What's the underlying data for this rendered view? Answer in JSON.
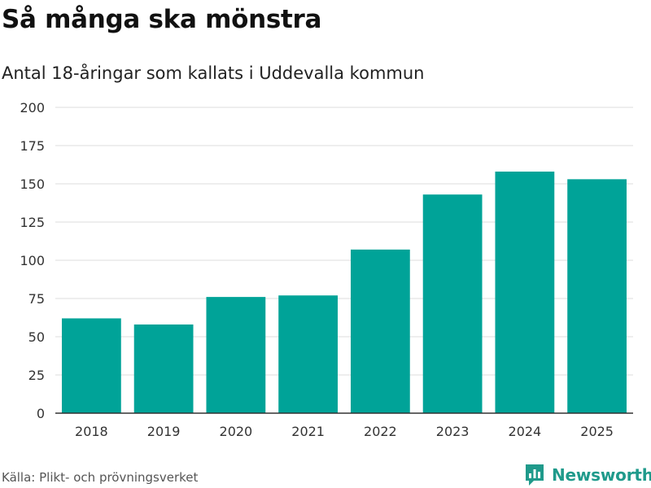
{
  "title": "Så många ska mönstra",
  "subtitle": "Antal 18-åringar som kallats i Uddevalla kommun",
  "source": "Källa: Plikt- och prövningsverket",
  "brand": "Newsworthy",
  "colors": {
    "bar": "#00a398",
    "grid": "#dddddd",
    "axis": "#333333",
    "brand": "#1f9a8b"
  },
  "chart_data": {
    "type": "bar",
    "title": "Så många ska mönstra",
    "subtitle": "Antal 18-åringar som kallats i Uddevalla kommun",
    "xlabel": "",
    "ylabel": "",
    "categories": [
      "2018",
      "2019",
      "2020",
      "2021",
      "2022",
      "2023",
      "2024",
      "2025"
    ],
    "values": [
      62,
      58,
      76,
      77,
      107,
      143,
      158,
      153
    ],
    "ylim": [
      0,
      200
    ],
    "yticks": [
      0,
      25,
      50,
      75,
      100,
      125,
      150,
      175,
      200
    ],
    "grid": true
  }
}
